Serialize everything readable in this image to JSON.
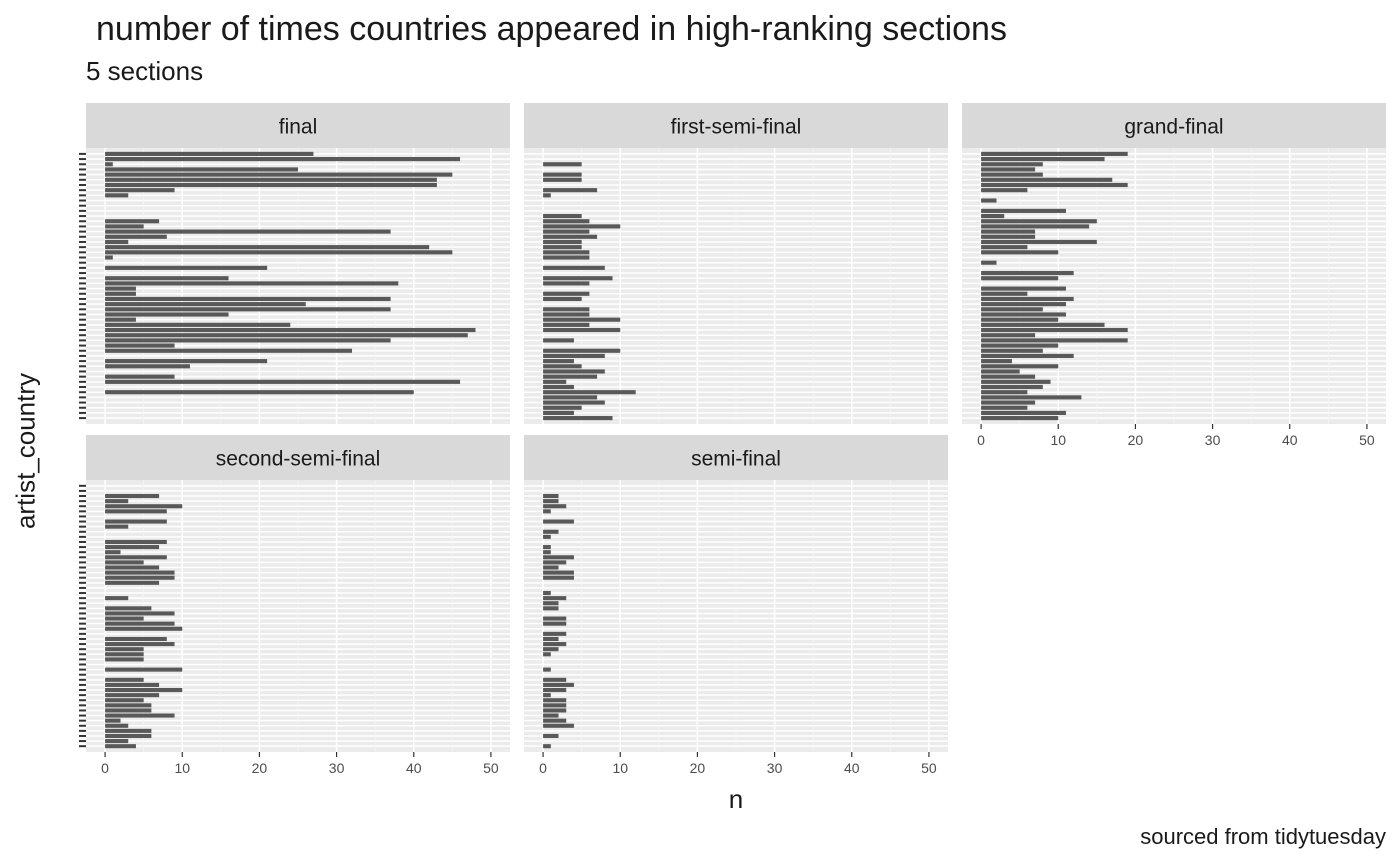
{
  "chart_data": {
    "type": "bar",
    "orientation": "horizontal",
    "title": "number of times countries appeared in high-ranking sections",
    "subtitle": "5 sections",
    "xlabel": "n",
    "ylabel": "artist_country",
    "caption": "sourced from tidytuesday",
    "xlim": [
      0,
      50
    ],
    "x_ticks": [
      0,
      10,
      20,
      30,
      40,
      50
    ],
    "grid": true,
    "category_count": 52,
    "panels": [
      {
        "name": "final",
        "values": [
          27,
          46,
          1,
          25,
          45,
          43,
          43,
          9,
          3,
          0,
          0,
          0,
          0,
          7,
          5,
          37,
          8,
          3,
          42,
          45,
          1,
          0,
          21,
          0,
          16,
          38,
          4,
          4,
          37,
          26,
          37,
          16,
          4,
          24,
          48,
          47,
          37,
          9,
          32,
          0,
          21,
          11,
          0,
          9,
          46,
          0,
          40,
          0,
          0,
          0,
          0,
          0
        ]
      },
      {
        "name": "first-semi-final",
        "values": [
          0,
          0,
          5,
          0,
          5,
          5,
          0,
          7,
          1,
          0,
          0,
          0,
          5,
          6,
          10,
          6,
          7,
          5,
          5,
          6,
          6,
          0,
          8,
          0,
          9,
          6,
          0,
          6,
          5,
          0,
          6,
          6,
          10,
          6,
          10,
          0,
          4,
          0,
          10,
          8,
          4,
          5,
          8,
          7,
          3,
          4,
          12,
          7,
          8,
          5,
          4,
          9
        ]
      },
      {
        "name": "grand-final",
        "values": [
          19,
          16,
          8,
          7,
          8,
          17,
          19,
          6,
          0,
          2,
          0,
          11,
          3,
          15,
          14,
          7,
          7,
          15,
          6,
          10,
          0,
          2,
          0,
          12,
          10,
          0,
          11,
          6,
          12,
          11,
          8,
          11,
          10,
          16,
          19,
          7,
          19,
          10,
          8,
          12,
          4,
          10,
          5,
          7,
          9,
          8,
          6,
          13,
          7,
          6,
          11,
          10
        ]
      },
      {
        "name": "second-semi-final",
        "values": [
          0,
          0,
          7,
          3,
          10,
          8,
          0,
          8,
          3,
          0,
          0,
          8,
          7,
          2,
          8,
          5,
          7,
          9,
          9,
          7,
          0,
          0,
          3,
          0,
          6,
          9,
          5,
          9,
          10,
          0,
          8,
          9,
          5,
          5,
          5,
          0,
          10,
          0,
          5,
          7,
          10,
          7,
          5,
          6,
          6,
          9,
          2,
          3,
          6,
          6,
          3,
          4
        ]
      },
      {
        "name": "semi-final",
        "values": [
          0,
          0,
          2,
          2,
          3,
          1,
          0,
          4,
          0,
          2,
          1,
          0,
          1,
          1,
          4,
          3,
          2,
          4,
          4,
          0,
          0,
          1,
          3,
          2,
          2,
          0,
          3,
          3,
          0,
          3,
          2,
          3,
          2,
          1,
          0,
          0,
          1,
          0,
          3,
          4,
          3,
          1,
          3,
          3,
          3,
          2,
          3,
          4,
          0,
          2,
          0,
          1
        ]
      }
    ]
  }
}
